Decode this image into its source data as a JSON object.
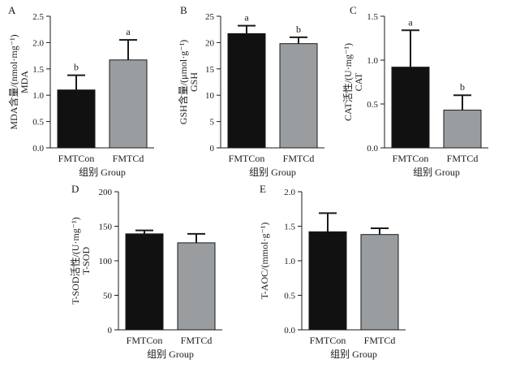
{
  "chart_data": [
    {
      "type": "bar",
      "panel_label": "A",
      "categories": [
        "FMTCon",
        "FMTCd"
      ],
      "values": [
        1.1,
        1.67
      ],
      "errors": [
        0.28,
        0.38
      ],
      "significance": [
        "b",
        "a"
      ],
      "bar_colors": [
        "#111111",
        "#999da0"
      ],
      "xlabel": "组别 Group",
      "ylabel": "MDA含量/(nmol·mg⁻¹)",
      "ylabel2": "MDA",
      "ylim": [
        0,
        2.5
      ],
      "yticks": [
        "0.0",
        "0.5",
        "1.0",
        "1.5",
        "2.0",
        "2.5"
      ]
    },
    {
      "type": "bar",
      "panel_label": "B",
      "categories": [
        "FMTCon",
        "FMTCd"
      ],
      "values": [
        21.7,
        19.8
      ],
      "errors": [
        1.5,
        1.2
      ],
      "significance": [
        "a",
        "b"
      ],
      "bar_colors": [
        "#111111",
        "#999da0"
      ],
      "xlabel": "组别 Group",
      "ylabel": "GSH含量/(μmol·g⁻¹)",
      "ylabel2": "GSH",
      "ylim": [
        0,
        25
      ],
      "yticks": [
        "0",
        "5",
        "10",
        "15",
        "20",
        "25"
      ]
    },
    {
      "type": "bar",
      "panel_label": "C",
      "categories": [
        "FMTCon",
        "FMTCd"
      ],
      "values": [
        0.92,
        0.43
      ],
      "errors": [
        0.42,
        0.17
      ],
      "significance": [
        "a",
        "b"
      ],
      "bar_colors": [
        "#111111",
        "#999da0"
      ],
      "xlabel": "组别 Group",
      "ylabel": "CAT活性/(U·mg⁻¹)",
      "ylabel2": "CAT",
      "ylim": [
        0,
        1.5
      ],
      "yticks": [
        "0.0",
        "0.5",
        "1.0",
        "1.5"
      ]
    },
    {
      "type": "bar",
      "panel_label": "D",
      "categories": [
        "FMTCon",
        "FMTCd"
      ],
      "values": [
        139,
        126
      ],
      "errors": [
        5,
        13
      ],
      "significance": [
        "",
        ""
      ],
      "bar_colors": [
        "#111111",
        "#999da0"
      ],
      "xlabel": "组别 Group",
      "ylabel": "T-SOD活性/(U·mg⁻¹)",
      "ylabel2": "T-SOD",
      "ylim": [
        0,
        200
      ],
      "yticks": [
        "0",
        "50",
        "100",
        "150",
        "200"
      ]
    },
    {
      "type": "bar",
      "panel_label": "E",
      "categories": [
        "FMTCon",
        "FMTCd"
      ],
      "values": [
        1.42,
        1.38
      ],
      "errors": [
        0.27,
        0.09
      ],
      "significance": [
        "",
        ""
      ],
      "bar_colors": [
        "#111111",
        "#999da0"
      ],
      "xlabel": "组别 Group",
      "ylabel": "T-AOC/(mmol·g⁻¹)",
      "ylabel2": "",
      "ylim": [
        0,
        2.0
      ],
      "yticks": [
        "0.0",
        "0.5",
        "1.0",
        "1.5",
        "2.0"
      ]
    }
  ]
}
